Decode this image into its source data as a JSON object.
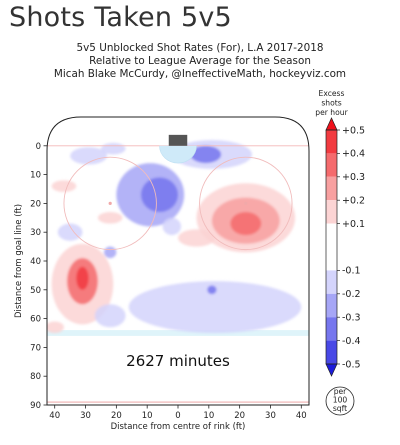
{
  "page_title": "Shots Taken 5v5",
  "subtitle_lines": [
    "5v5 Unblocked Shot Rates (For), L.A 2017-2018",
    "Relative to League Average for the Season",
    "Micah Blake McCurdy, @IneffectiveMath, hockeyviz.com"
  ],
  "chart_data": {
    "type": "heatmap",
    "title": "Shots Taken 5v5",
    "subtitle": "5v5 Unblocked Shot Rates (For), L.A 2017-2018",
    "xlabel": "Distance from centre of rink (ft)",
    "ylabel": "Distance from goal line (ft)",
    "xlim": [
      -42.5,
      42.5
    ],
    "ylim": [
      -10,
      90
    ],
    "x_ticks": [
      40,
      30,
      20,
      10,
      0,
      10,
      20,
      30,
      40
    ],
    "x_tick_values": [
      -40,
      -30,
      -20,
      -10,
      0,
      10,
      20,
      30,
      40
    ],
    "y_ticks": [
      0,
      10,
      20,
      30,
      40,
      50,
      60,
      70,
      80,
      90
    ],
    "annotation": "2627 minutes",
    "colorbar": {
      "title": [
        "Excess",
        "shots",
        "per hour"
      ],
      "ticks": [
        "+0.5",
        "+0.4",
        "+0.3",
        "+0.2",
        "+0.1",
        "-0.1",
        "-0.2",
        "-0.3",
        "-0.4",
        "-0.5"
      ],
      "tick_values": [
        0.5,
        0.4,
        0.3,
        0.2,
        0.1,
        -0.1,
        -0.2,
        -0.3,
        -0.4,
        -0.5
      ],
      "range": [
        -0.5,
        0.5
      ],
      "colors": [
        "#f0101a",
        "#f23b40",
        "#f56b6d",
        "#f8a0a0",
        "#fcd4d4",
        "#ffffff",
        "#d4d4fc",
        "#a6a6f6",
        "#7676ee",
        "#4848e6",
        "#1c1cdb"
      ]
    },
    "unit_badge": [
      "per",
      "100",
      "sqft"
    ],
    "regions": [
      {
        "x": 11,
        "y": 3,
        "rx": 13,
        "ry": 5,
        "v": -0.12
      },
      {
        "x": 9,
        "y": 3,
        "rx": 5,
        "ry": 3,
        "v": -0.3
      },
      {
        "x": -29,
        "y": 3.5,
        "rx": 6,
        "ry": 3,
        "v": -0.12
      },
      {
        "x": -21,
        "y": 1,
        "rx": 4,
        "ry": 2,
        "v": -0.1
      },
      {
        "x": -9,
        "y": 17,
        "rx": 11,
        "ry": 11,
        "v": -0.2
      },
      {
        "x": -6,
        "y": 17,
        "rx": 6,
        "ry": 6,
        "v": -0.3
      },
      {
        "x": -2,
        "y": 28,
        "rx": 3,
        "ry": 3,
        "v": -0.12
      },
      {
        "x": -37,
        "y": 14,
        "rx": 4,
        "ry": 2,
        "v": 0.12
      },
      {
        "x": 22,
        "y": 25,
        "rx": 16,
        "ry": 12,
        "v": 0.12
      },
      {
        "x": 22,
        "y": 26,
        "rx": 11,
        "ry": 8,
        "v": 0.22
      },
      {
        "x": 22,
        "y": 27,
        "rx": 5,
        "ry": 4,
        "v": 0.32
      },
      {
        "x": 6,
        "y": 32,
        "rx": 6,
        "ry": 3,
        "v": 0.12
      },
      {
        "x": -22,
        "y": 25,
        "rx": 4,
        "ry": 2,
        "v": 0.12
      },
      {
        "x": -35,
        "y": 30,
        "rx": 4,
        "ry": 3,
        "v": -0.12
      },
      {
        "x": -22,
        "y": 37,
        "rx": 2,
        "ry": 2,
        "v": -0.15
      },
      {
        "x": -31,
        "y": 48,
        "rx": 10,
        "ry": 14,
        "v": 0.15
      },
      {
        "x": -31,
        "y": 47,
        "rx": 5,
        "ry": 8,
        "v": 0.26
      },
      {
        "x": -31,
        "y": 46,
        "rx": 2,
        "ry": 4,
        "v": 0.36
      },
      {
        "x": 12,
        "y": 56,
        "rx": 28,
        "ry": 9,
        "v": -0.12
      },
      {
        "x": 11,
        "y": 50,
        "rx": 1.5,
        "ry": 1.5,
        "v": -0.3
      },
      {
        "x": -22,
        "y": 59,
        "rx": 5,
        "ry": 4,
        "v": -0.12
      },
      {
        "x": -40,
        "y": 63,
        "rx": 3,
        "ry": 2,
        "v": 0.12
      }
    ]
  },
  "annotation_label": "2627 minutes"
}
